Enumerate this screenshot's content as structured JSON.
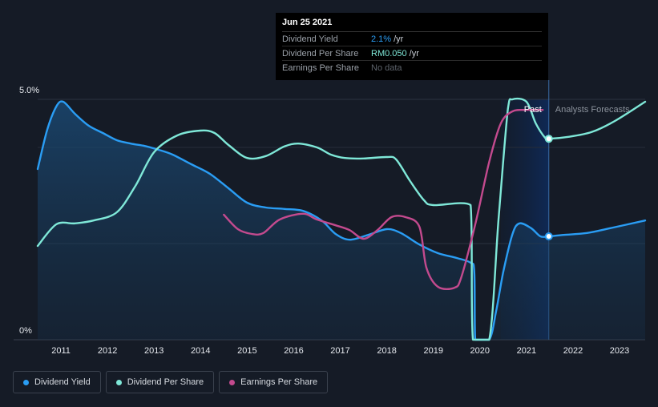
{
  "chart_data": {
    "type": "line",
    "y_axis": {
      "ticks": [
        {
          "value": 5.0,
          "label": "5.0%"
        },
        {
          "value": 0,
          "label": "0%"
        }
      ],
      "ylim": [
        0,
        5.0
      ]
    },
    "x_axis": {
      "ticks": [
        "2011",
        "2012",
        "2013",
        "2014",
        "2015",
        "2016",
        "2017",
        "2018",
        "2019",
        "2020",
        "2021",
        "2022",
        "2023"
      ],
      "xlim": [
        2010.5,
        2023.55
      ]
    },
    "regions": {
      "past_label": "Past",
      "forecast_label": "Analysts Forecasts",
      "divider_x": 2021.48,
      "highlight_start": 2020.45
    },
    "series": [
      {
        "name": "Dividend Yield",
        "key": "yield",
        "color": "#2a9df4",
        "fill": true,
        "points": [
          [
            2010.5,
            3.55
          ],
          [
            2010.7,
            4.35
          ],
          [
            2010.9,
            4.85
          ],
          [
            2011.05,
            4.95
          ],
          [
            2011.3,
            4.7
          ],
          [
            2011.6,
            4.45
          ],
          [
            2011.9,
            4.3
          ],
          [
            2012.2,
            4.15
          ],
          [
            2012.5,
            4.08
          ],
          [
            2012.8,
            4.03
          ],
          [
            2013.1,
            3.95
          ],
          [
            2013.4,
            3.85
          ],
          [
            2013.8,
            3.65
          ],
          [
            2014.2,
            3.45
          ],
          [
            2014.6,
            3.15
          ],
          [
            2015.0,
            2.85
          ],
          [
            2015.4,
            2.75
          ],
          [
            2015.8,
            2.72
          ],
          [
            2016.2,
            2.68
          ],
          [
            2016.6,
            2.48
          ],
          [
            2016.9,
            2.2
          ],
          [
            2017.2,
            2.08
          ],
          [
            2017.6,
            2.18
          ],
          [
            2018.0,
            2.3
          ],
          [
            2018.3,
            2.22
          ],
          [
            2018.7,
            1.98
          ],
          [
            2019.1,
            1.8
          ],
          [
            2019.5,
            1.7
          ],
          [
            2019.8,
            1.6
          ],
          [
            2019.88,
            1.4
          ],
          [
            2019.9,
            0
          ],
          [
            2020.2,
            0
          ],
          [
            2020.35,
            0.6
          ],
          [
            2020.5,
            1.4
          ],
          [
            2020.7,
            2.2
          ],
          [
            2020.85,
            2.42
          ],
          [
            2021.1,
            2.32
          ],
          [
            2021.3,
            2.15
          ],
          [
            2021.48,
            2.15
          ],
          [
            2021.8,
            2.18
          ],
          [
            2022.3,
            2.22
          ],
          [
            2022.8,
            2.32
          ],
          [
            2023.55,
            2.48
          ]
        ]
      },
      {
        "name": "Dividend Per Share",
        "key": "dps",
        "color": "#7fe8d8",
        "fill": false,
        "points": [
          [
            2010.5,
            1.95
          ],
          [
            2010.9,
            2.4
          ],
          [
            2011.3,
            2.42
          ],
          [
            2011.7,
            2.48
          ],
          [
            2012.2,
            2.65
          ],
          [
            2012.6,
            3.2
          ],
          [
            2013.0,
            3.9
          ],
          [
            2013.5,
            4.25
          ],
          [
            2014.0,
            4.35
          ],
          [
            2014.3,
            4.3
          ],
          [
            2014.6,
            4.05
          ],
          [
            2015.0,
            3.78
          ],
          [
            2015.4,
            3.82
          ],
          [
            2015.8,
            4.02
          ],
          [
            2016.1,
            4.08
          ],
          [
            2016.5,
            4.0
          ],
          [
            2016.8,
            3.85
          ],
          [
            2017.1,
            3.78
          ],
          [
            2017.5,
            3.77
          ],
          [
            2018.0,
            3.8
          ],
          [
            2018.2,
            3.75
          ],
          [
            2018.5,
            3.3
          ],
          [
            2018.8,
            2.9
          ],
          [
            2019.0,
            2.8
          ],
          [
            2019.8,
            2.8
          ],
          [
            2019.85,
            0
          ],
          [
            2020.2,
            0
          ],
          [
            2020.4,
            2.5
          ],
          [
            2020.6,
            4.8
          ],
          [
            2020.7,
            5.0
          ],
          [
            2021.0,
            4.95
          ],
          [
            2021.2,
            4.5
          ],
          [
            2021.4,
            4.2
          ],
          [
            2021.48,
            4.18
          ],
          [
            2021.9,
            4.22
          ],
          [
            2022.4,
            4.32
          ],
          [
            2022.9,
            4.55
          ],
          [
            2023.55,
            4.95
          ]
        ]
      },
      {
        "name": "Earnings Per Share",
        "key": "eps",
        "color": "#c34a8e",
        "fill": false,
        "points": [
          [
            2014.5,
            2.6
          ],
          [
            2014.8,
            2.3
          ],
          [
            2015.1,
            2.2
          ],
          [
            2015.35,
            2.22
          ],
          [
            2015.7,
            2.5
          ],
          [
            2016.2,
            2.62
          ],
          [
            2016.5,
            2.5
          ],
          [
            2016.9,
            2.38
          ],
          [
            2017.2,
            2.28
          ],
          [
            2017.5,
            2.1
          ],
          [
            2017.8,
            2.28
          ],
          [
            2018.1,
            2.55
          ],
          [
            2018.4,
            2.55
          ],
          [
            2018.7,
            2.35
          ],
          [
            2018.85,
            1.5
          ],
          [
            2019.1,
            1.1
          ],
          [
            2019.45,
            1.08
          ],
          [
            2019.6,
            1.3
          ],
          [
            2019.9,
            2.4
          ],
          [
            2020.2,
            3.7
          ],
          [
            2020.45,
            4.5
          ],
          [
            2020.7,
            4.75
          ],
          [
            2021.0,
            4.78
          ],
          [
            2021.35,
            4.78
          ]
        ]
      }
    ],
    "markers": [
      {
        "key": "yield",
        "x": 2021.48,
        "y": 2.15
      },
      {
        "key": "dps",
        "x": 2021.48,
        "y": 4.18
      }
    ]
  },
  "tooltip": {
    "date": "Jun 25 2021",
    "rows": [
      {
        "label": "Dividend Yield",
        "value": "2.1%",
        "unit": "/yr"
      },
      {
        "label": "Dividend Per Share",
        "value": "RM0.050",
        "unit": "/yr"
      },
      {
        "label": "Earnings Per Share",
        "value": "No data",
        "unit": ""
      }
    ]
  },
  "legend": [
    {
      "label": "Dividend Yield",
      "color": "#2a9df4"
    },
    {
      "label": "Dividend Per Share",
      "color": "#7fe8d8"
    },
    {
      "label": "Earnings Per Share",
      "color": "#c34a8e"
    }
  ]
}
